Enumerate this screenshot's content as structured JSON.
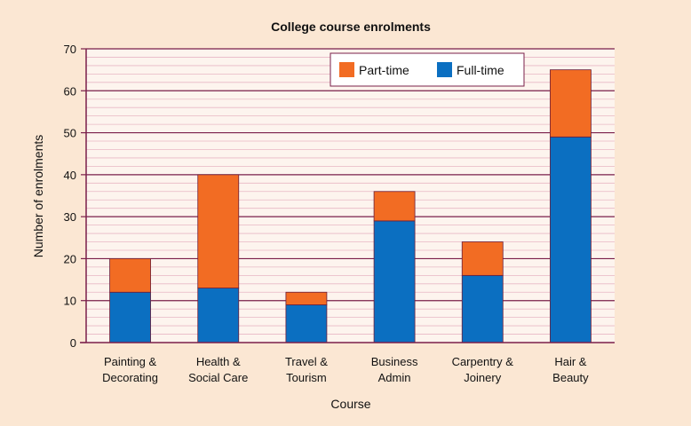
{
  "chart_data": {
    "type": "bar",
    "stacked": true,
    "title": "College course enrolments",
    "xlabel": "Course",
    "ylabel": "Number of enrolments",
    "ylim": [
      0,
      70
    ],
    "yticks": [
      0,
      10,
      20,
      30,
      40,
      50,
      60,
      70
    ],
    "categories": [
      [
        "Painting &",
        "Decorating"
      ],
      [
        "Health &",
        "Social Care"
      ],
      [
        "Travel &",
        "Tourism"
      ],
      [
        "Business",
        "Admin"
      ],
      [
        "Carpentry &",
        "Joinery"
      ],
      [
        "Hair &",
        "Beauty"
      ]
    ],
    "series": [
      {
        "name": "Full-time",
        "color": "#0b6fc1",
        "values": [
          12,
          13,
          9,
          29,
          16,
          49
        ]
      },
      {
        "name": "Part-time",
        "color": "#f26c23",
        "values": [
          8,
          27,
          3,
          7,
          8,
          16
        ]
      }
    ],
    "legend_order": [
      "Part-time",
      "Full-time"
    ],
    "legend_position": "top-right"
  }
}
